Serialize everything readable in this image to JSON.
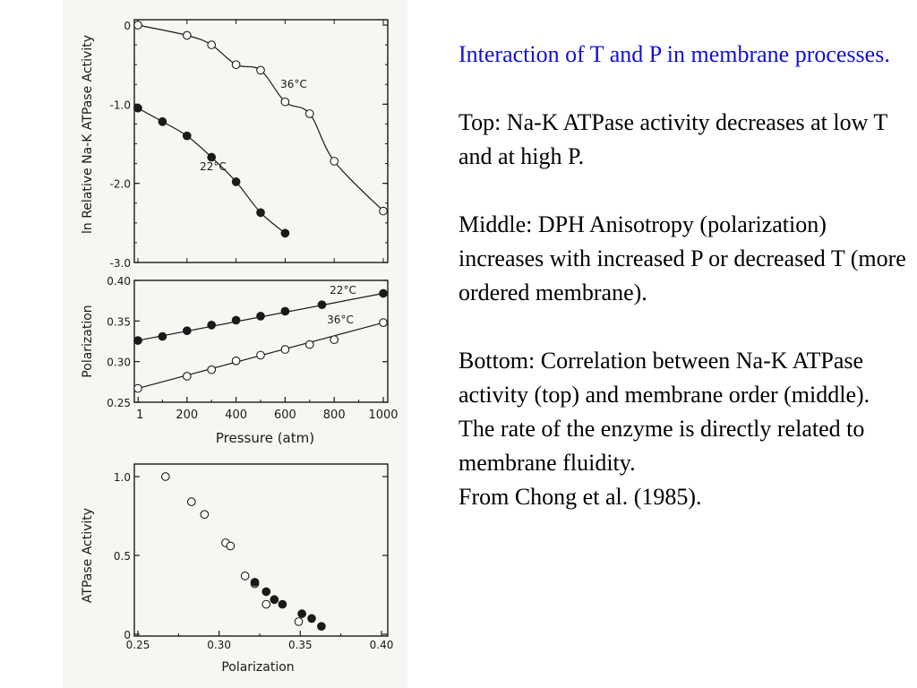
{
  "caption": {
    "title": "Interaction of T and P in membrane processes.",
    "top": "Top: Na-K ATPase activity decreases at low T and at high P.",
    "middle": "Middle: DPH Anisotropy (polarization) increases with increased P or decreased T (more ordered membrane).",
    "bottom": "Bottom: Correlation between Na-K ATPase activity (top) and membrane order (middle).  The rate of the enzyme is directly related to membrane fluidity.",
    "source": "From Chong et al. (1985)."
  },
  "colors": {
    "title": "#1010d8",
    "text": "#000000",
    "figure_bg": "#f6f6f3",
    "ink": "#1a1a1a"
  },
  "chart_data": [
    {
      "type": "scatter",
      "panel": "top",
      "ylabel": "ln Relative Na-K ATPase Activity",
      "xlabel": "",
      "xlim": [
        0,
        1000
      ],
      "ylim": [
        -3.0,
        0
      ],
      "y_ticks": [
        0,
        -1.0,
        -2.0,
        -3.0
      ],
      "y_tick_labels": [
        "0",
        "-1.0",
        "-2.0",
        "-3.0"
      ],
      "series": [
        {
          "name": "36°C",
          "marker": "open",
          "x": [
            0,
            200,
            300,
            400,
            500,
            600,
            700,
            800,
            1000
          ],
          "y": [
            0.0,
            -0.13,
            -0.25,
            -0.5,
            -0.57,
            -0.97,
            -1.12,
            -1.72,
            -2.35
          ],
          "fit": "curve"
        },
        {
          "name": "22°C",
          "marker": "filled",
          "x": [
            0,
            100,
            200,
            300,
            400,
            500,
            600
          ],
          "y": [
            -1.05,
            -1.22,
            -1.4,
            -1.67,
            -1.98,
            -2.37,
            -2.63
          ],
          "fit": "curve"
        }
      ],
      "annotations": [
        "36°C",
        "22°C"
      ]
    },
    {
      "type": "line",
      "panel": "middle",
      "xlabel": "Pressure (atm)",
      "ylabel": "Polarization",
      "xlim": [
        0,
        1000
      ],
      "ylim": [
        0.25,
        0.4
      ],
      "x_ticks": [
        1,
        200,
        400,
        600,
        800,
        1000
      ],
      "x_tick_labels": [
        "1",
        "200",
        "400",
        "600",
        "800",
        "1000"
      ],
      "y_ticks": [
        0.25,
        0.3,
        0.35,
        0.4
      ],
      "y_tick_labels": [
        "0.25",
        "0.30",
        "0.35",
        "0.40"
      ],
      "series": [
        {
          "name": "22°C",
          "marker": "filled",
          "x": [
            0,
            100,
            200,
            300,
            400,
            500,
            600,
            750,
            1000
          ],
          "y": [
            0.326,
            0.331,
            0.338,
            0.345,
            0.351,
            0.356,
            0.362,
            0.37,
            0.384
          ]
        },
        {
          "name": "36°C",
          "marker": "open",
          "x": [
            0,
            200,
            300,
            400,
            500,
            600,
            700,
            800,
            1000
          ],
          "y": [
            0.267,
            0.282,
            0.29,
            0.301,
            0.308,
            0.315,
            0.321,
            0.327,
            0.348
          ]
        }
      ],
      "annotations": [
        "22°C",
        "36°C"
      ]
    },
    {
      "type": "scatter",
      "panel": "bottom",
      "xlabel": "Polarization",
      "ylabel": "ATPase Activity",
      "xlim": [
        0.25,
        0.4
      ],
      "ylim": [
        0,
        1.1
      ],
      "x_ticks": [
        0.25,
        0.3,
        0.35,
        0.4
      ],
      "x_tick_labels": [
        "0.25",
        "0.30",
        "0.35",
        "0.40"
      ],
      "y_ticks": [
        0,
        0.5,
        1.0
      ],
      "y_tick_labels": [
        "0",
        "0.5",
        "1.0"
      ],
      "series": [
        {
          "name": "36°C",
          "marker": "open",
          "x": [
            0.267,
            0.283,
            0.291,
            0.304,
            0.307,
            0.316,
            0.322,
            0.329,
            0.349
          ],
          "y": [
            1.0,
            0.84,
            0.76,
            0.58,
            0.56,
            0.37,
            0.32,
            0.19,
            0.08
          ]
        },
        {
          "name": "22°C",
          "marker": "filled",
          "x": [
            0.322,
            0.329,
            0.334,
            0.339,
            0.351,
            0.357,
            0.363
          ],
          "y": [
            0.33,
            0.27,
            0.22,
            0.19,
            0.13,
            0.1,
            0.05
          ]
        }
      ]
    }
  ]
}
